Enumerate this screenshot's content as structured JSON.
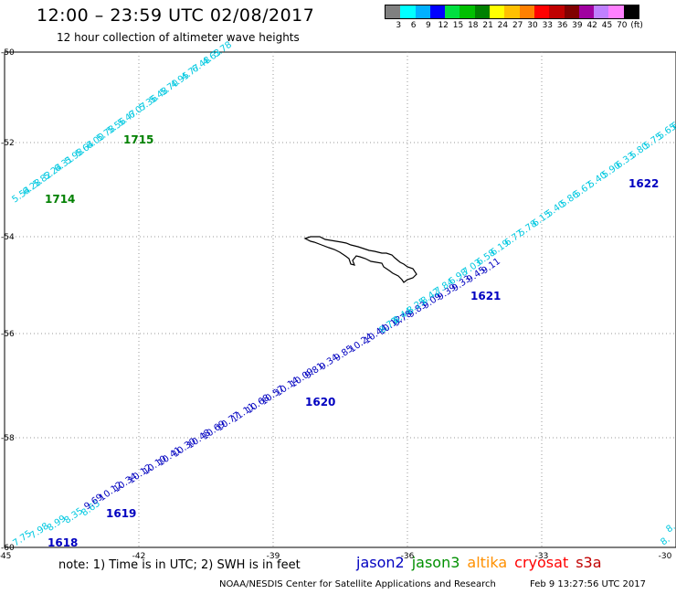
{
  "title": "12:00 – 23:59 UTC 02/08/2017",
  "subtitle": "12 hour collection of altimeter wave heights",
  "colorbar": {
    "colors": [
      "#808080",
      "#00ffff",
      "#00b0ff",
      "#0000ff",
      "#00e040",
      "#00c000",
      "#008000",
      "#ffff00",
      "#ffc000",
      "#ff8000",
      "#ff0000",
      "#c00000",
      "#800000",
      "#a000a0",
      "#c080ff",
      "#ff80ff",
      "#000000"
    ],
    "labels": [
      "3",
      "6",
      "9",
      "12",
      "15",
      "18",
      "21",
      "24",
      "27",
      "30",
      "33",
      "36",
      "39",
      "42",
      "45",
      "70",
      "(ft)"
    ]
  },
  "map": {
    "lon_ticks": [
      "-45",
      "-42",
      "-39",
      "-36",
      "-33",
      "-30"
    ],
    "lat_ticks": [
      "-50",
      "-52",
      "-54",
      "-56",
      "-58",
      "-60"
    ]
  },
  "passes": {
    "p1714_1715": {
      "color": "#00c8e0",
      "values": [
        "5.54",
        "6.28",
        "5.82",
        "5.24",
        "6.31",
        "5.98",
        "5.64",
        "6.00",
        "5.78",
        "5.56",
        "5.47",
        "6.07",
        "5.36",
        "5.48",
        "5.70",
        "4.95",
        "4.77",
        "6.48",
        "4.63",
        "5.78"
      ],
      "time_labels": [
        {
          "text": "1714",
          "color": "#008000"
        },
        {
          "text": "1715",
          "color": "#008000"
        }
      ]
    },
    "p1618_1622_south": {
      "color": "#00c8e0",
      "values": [
        "7.75",
        "7.98",
        "8.99",
        "8.35",
        "8.65"
      ]
    },
    "p1618_1622_blue": {
      "color": "#0000c0",
      "values": [
        "9.69",
        "10.12",
        "10.34",
        "10.12",
        "10.10",
        "10.41",
        "10.30",
        "10.48",
        "10.69",
        "10.77",
        "11.11",
        "10.68",
        "10.57",
        "10.14",
        "10.09",
        "9.81",
        "9.34",
        "9.85",
        "10.24",
        "10.44",
        "10.12",
        "9.78",
        "9.83",
        "9.09",
        "9.39",
        "9.33",
        "9.45",
        "9.11"
      ],
      "time_labels": [
        {
          "text": "1618",
          "color": "#0000c0"
        },
        {
          "text": "1619",
          "color": "#0000c0"
        },
        {
          "text": "1620",
          "color": "#0000c0"
        },
        {
          "text": "1621",
          "color": "#0000c0"
        },
        {
          "text": "1622",
          "color": "#0000c0"
        }
      ]
    },
    "p1618_1622_north": {
      "color": "#00c8e0",
      "values": [
        "8.73",
        "8.44",
        "8.25",
        "8.42",
        "7.84",
        "6.98",
        "7.03",
        "6.58",
        "6.19",
        "6.77",
        "5.78",
        "6.15",
        "5.40",
        "5.86",
        "5.67",
        "5.40",
        "5.90",
        "6.33",
        "5.80",
        "5.75",
        "5.65",
        "6.5"
      ]
    },
    "east_stub": {
      "color": "#00c8e0",
      "values": [
        "8.",
        "8."
      ]
    }
  },
  "footer": {
    "note": "note:  1) Time is in UTC;  2) SWH is in feet",
    "legend": [
      {
        "name": "jason2",
        "color": "#0000c0"
      },
      {
        "name": "jason3",
        "color": "#009000"
      },
      {
        "name": "altika",
        "color": "#ff9000"
      },
      {
        "name": "cryosat",
        "color": "#ff0000"
      },
      {
        "name": "s3a",
        "color": "#c00000"
      }
    ],
    "credit": "NOAA/NESDIS Center for Satellite Applications and Research",
    "timestamp": "Feb  9 13:27:56 UTC 2017"
  }
}
